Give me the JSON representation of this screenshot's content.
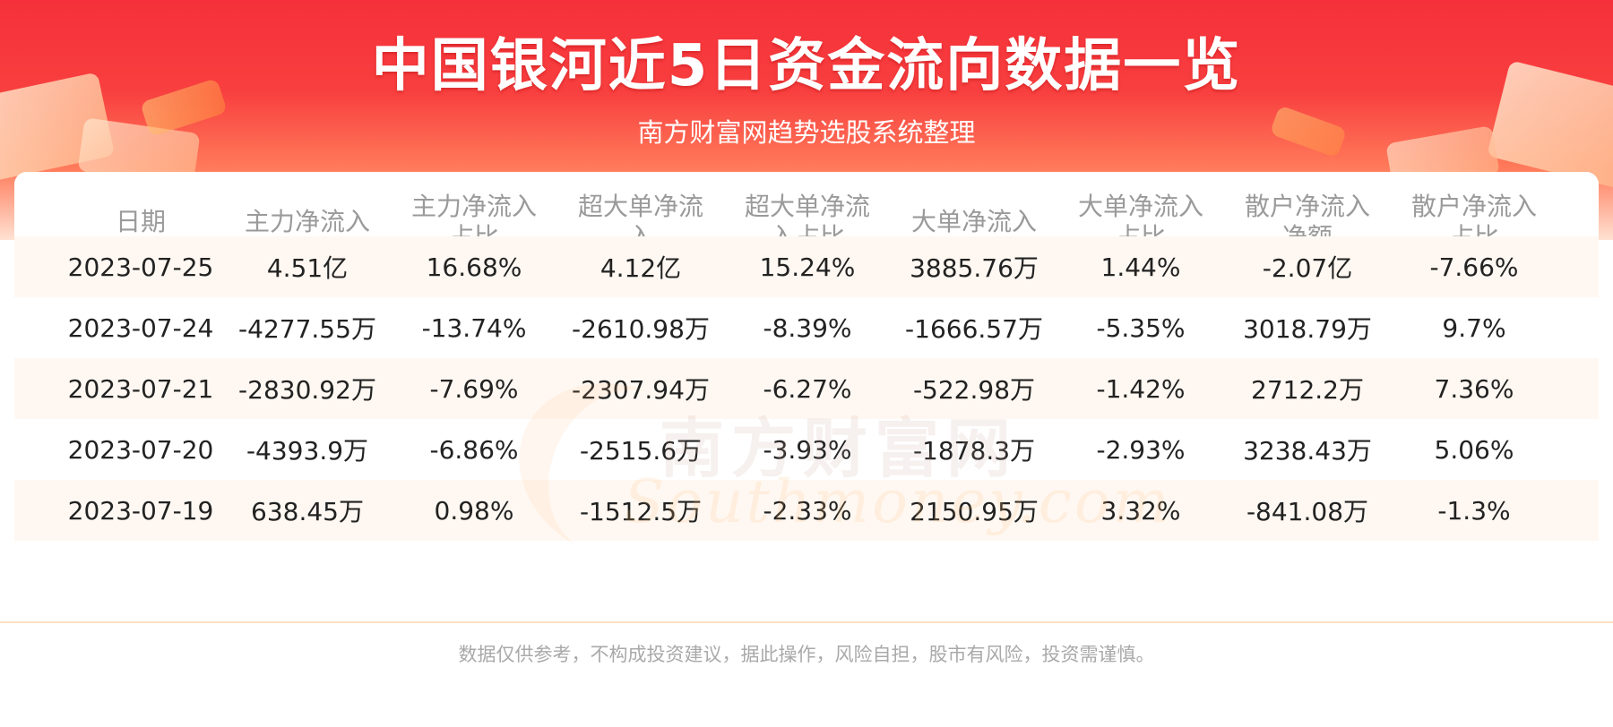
{
  "header": {
    "title": "中国银河近5日资金流向数据一览",
    "subtitle": "南方财富网趋势选股系统整理"
  },
  "watermark": {
    "cn": "南方财富网",
    "en": "Southmoney.com"
  },
  "table": {
    "headers": [
      [
        "日期"
      ],
      [
        "主力净流入"
      ],
      [
        "主力净流入",
        "占比"
      ],
      [
        "超大单净流",
        "入"
      ],
      [
        "超大单净流",
        "入占比"
      ],
      [
        "大单净流入"
      ],
      [
        "大单净流入",
        "占比"
      ],
      [
        "散户净流入",
        "净额"
      ],
      [
        "散户净流入",
        "占比"
      ]
    ],
    "rows": [
      [
        "2023-07-25",
        "4.51亿",
        "16.68%",
        "4.12亿",
        "15.24%",
        "3885.76万",
        "1.44%",
        "-2.07亿",
        "-7.66%"
      ],
      [
        "2023-07-24",
        "-4277.55万",
        "-13.74%",
        "-2610.98万",
        "-8.39%",
        "-1666.57万",
        "-5.35%",
        "3018.79万",
        "9.7%"
      ],
      [
        "2023-07-21",
        "-2830.92万",
        "-7.69%",
        "-2307.94万",
        "-6.27%",
        "-522.98万",
        "-1.42%",
        "2712.2万",
        "7.36%"
      ],
      [
        "2023-07-20",
        "-4393.9万",
        "-6.86%",
        "-2515.6万",
        "-3.93%",
        "-1878.3万",
        "-2.93%",
        "3238.43万",
        "5.06%"
      ],
      [
        "2023-07-19",
        "638.45万",
        "0.98%",
        "-1512.5万",
        "-2.33%",
        "2150.95万",
        "3.32%",
        "-841.08万",
        "-1.3%"
      ]
    ]
  },
  "footer": {
    "disclaimer": "数据仅供参考，不构成投资建议，据此操作，风险自担，股市有风险，投资需谨慎。"
  },
  "colors": {
    "banner_red": "#f5303a",
    "header_text": "#9a9a9a",
    "cell_text": "#222222",
    "alt_row": "#fff8f2"
  }
}
